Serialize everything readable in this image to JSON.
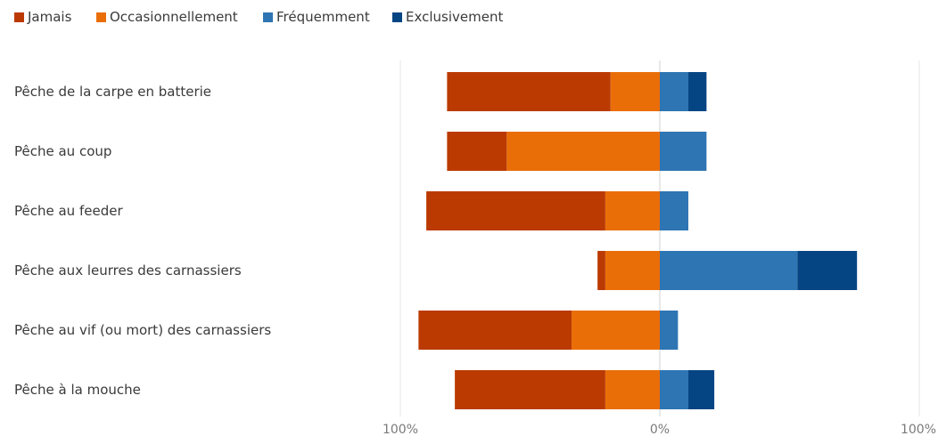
{
  "chart_data": {
    "type": "bar",
    "orientation": "horizontal",
    "stacking": "diverging",
    "categories": [
      "Pêche de la carpe en batterie",
      "Pêche au coup",
      "Pêche au feeder",
      "Pêche aux leurres des carnassiers",
      "Pêche au vif (ou mort) des carnassiers",
      "Pêche à la mouche"
    ],
    "series": [
      {
        "name": "Jamais",
        "side": "negative",
        "color": "#bb3a02",
        "values": [
          63,
          23,
          69,
          3,
          59,
          58
        ]
      },
      {
        "name": "Occasionnellement",
        "side": "negative",
        "color": "#ea6e08",
        "values": [
          19,
          59,
          21,
          21,
          34,
          21
        ]
      },
      {
        "name": "Fréquemment",
        "side": "positive",
        "color": "#2e75b3",
        "values": [
          11,
          18,
          11,
          53,
          7,
          11
        ]
      },
      {
        "name": "Exclusivement",
        "side": "positive",
        "color": "#064583",
        "values": [
          7,
          0,
          0,
          23,
          0,
          10
        ]
      }
    ],
    "xlim": [
      -100,
      100
    ],
    "x_tick_values": [
      -100,
      0,
      100
    ],
    "x_tick_labels": [
      "100%",
      "0%",
      "100%"
    ],
    "legend_position": "top-left",
    "grid": "vertical lines at ticks",
    "title": "",
    "xlabel": "",
    "ylabel": ""
  }
}
